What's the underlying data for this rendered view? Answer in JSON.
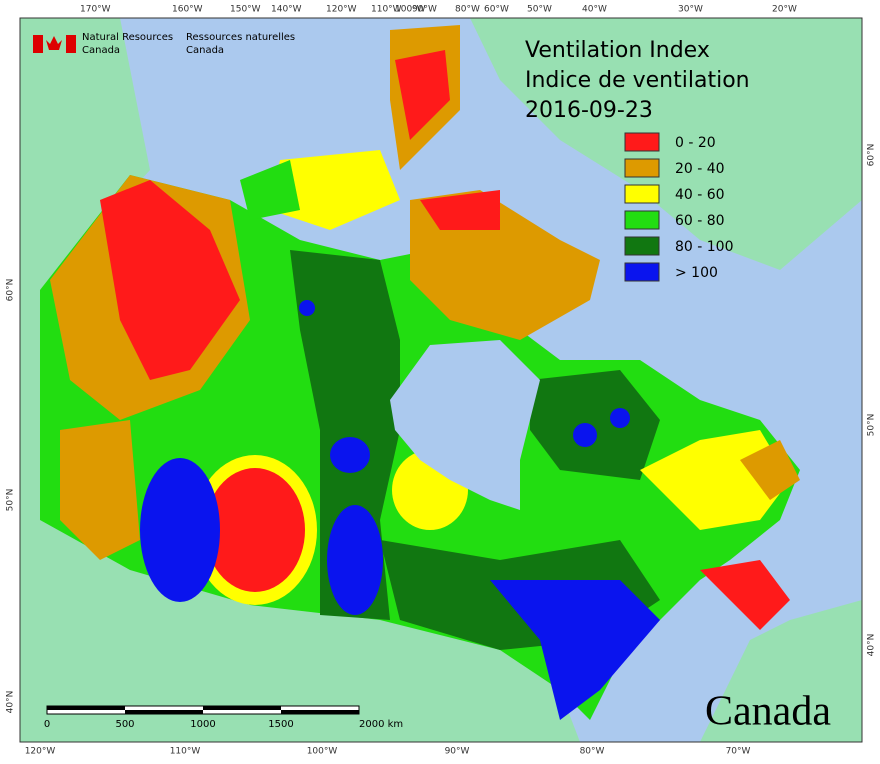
{
  "header": {
    "agency_en": [
      "Natural Resources",
      "Canada"
    ],
    "agency_fr": [
      "Ressources naturelles",
      "Canada"
    ]
  },
  "title": {
    "line1": "Ventilation Index",
    "line2": "Indice de ventilation",
    "date": "2016-09-23"
  },
  "legend": {
    "items": [
      {
        "label": "0 - 20",
        "color": "#ff1a1a"
      },
      {
        "label": "20 - 40",
        "color": "#dd9a00"
      },
      {
        "label": "40 - 60",
        "color": "#ffff00"
      },
      {
        "label": "60 - 80",
        "color": "#22dd11"
      },
      {
        "label": "80 - 100",
        "color": "#117711"
      },
      {
        "label": "> 100",
        "color": "#0a14ee"
      }
    ]
  },
  "graticule": {
    "top": [
      "170°W",
      "160°W",
      "150°W",
      "140°W",
      "120°W",
      "110°W",
      "100°W",
      "90°W",
      "80°W",
      "60°W",
      "50°W",
      "40°W",
      "30°W",
      "20°W"
    ],
    "bottom": [
      "120°W",
      "110°W",
      "100°W",
      "90°W",
      "80°W",
      "70°W"
    ],
    "left": [
      "60°N",
      "50°N",
      "40°N"
    ],
    "right": [
      "60°N",
      "50°N",
      "40°N"
    ]
  },
  "scale_bar": {
    "labels": [
      "0",
      "500",
      "1000",
      "1500",
      "2000 km"
    ]
  },
  "wordmark": "Canada"
}
